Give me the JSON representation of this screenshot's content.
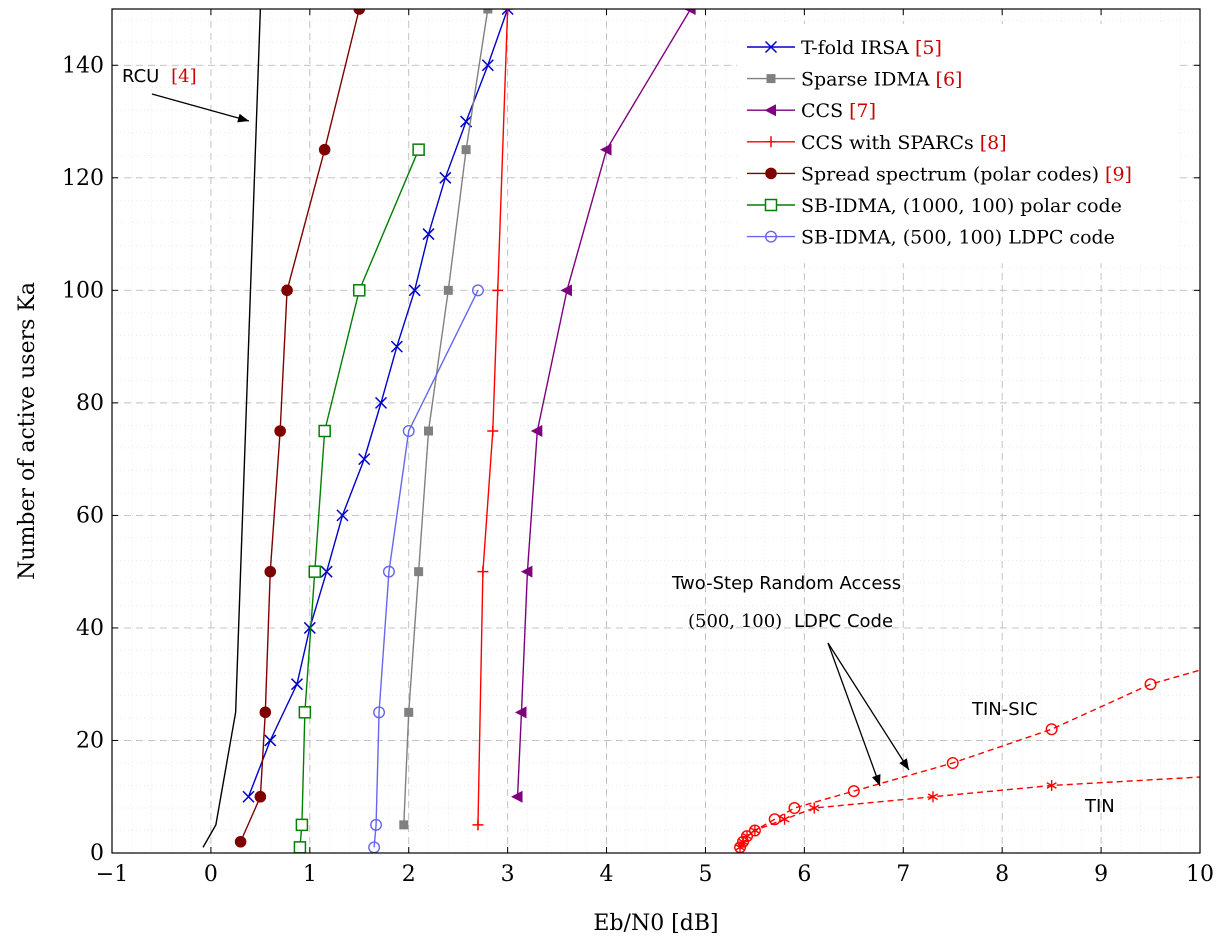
{
  "chart_data": {
    "type": "line",
    "xlabel": "Eb/N0 [dB]",
    "ylabel": "Number of active users Ka",
    "xlim": [
      -1,
      10
    ],
    "ylim": [
      0,
      150
    ],
    "xticks": [
      -1,
      0,
      1,
      2,
      3,
      4,
      5,
      6,
      7,
      8,
      9,
      10
    ],
    "yticks": [
      0,
      20,
      40,
      60,
      80,
      100,
      120,
      140
    ],
    "grid": true,
    "legend_position": "top-right",
    "series": [
      {
        "name": "T-fold IRSA [5]",
        "color": "#0000cc",
        "marker": "x",
        "dash": "",
        "x": [
          0.38,
          0.6,
          0.87,
          1.0,
          1.17,
          1.33,
          1.55,
          1.72,
          1.88,
          2.06,
          2.2,
          2.37,
          2.58,
          2.8,
          3.0
        ],
        "y": [
          10,
          20,
          30,
          40,
          50,
          60,
          70,
          80,
          90,
          100,
          110,
          120,
          130,
          140,
          150
        ]
      },
      {
        "name": "Sparse IDMA [6]",
        "color": "#808080",
        "marker": "square-filled",
        "dash": "",
        "x": [
          1.95,
          2.0,
          2.1,
          2.2,
          2.4,
          2.58,
          2.8
        ],
        "y": [
          5,
          25,
          50,
          75,
          100,
          125,
          150
        ]
      },
      {
        "name": "CCS [7]",
        "color": "#7f007f",
        "marker": "triangle-left",
        "dash": "",
        "x": [
          3.1,
          3.14,
          3.2,
          3.3,
          3.6,
          4.0,
          4.85
        ],
        "y": [
          10,
          25,
          50,
          75,
          100,
          125,
          150
        ]
      },
      {
        "name": "CCS with SPARCs [8]",
        "color": "#ff0000",
        "marker": "plus",
        "dash": "",
        "x": [
          2.7,
          2.75,
          2.85,
          2.9,
          3.0
        ],
        "y": [
          5,
          50,
          75,
          100,
          150
        ]
      },
      {
        "name": "Spread spectrum (polar codes) [9]",
        "color": "#7f0000",
        "marker": "circle-filled",
        "dash": "",
        "x": [
          0.3,
          0.5,
          0.55,
          0.6,
          0.7,
          0.77,
          1.15,
          1.5
        ],
        "y": [
          2,
          10,
          25,
          50,
          75,
          100,
          125,
          150
        ]
      },
      {
        "name": "SB-IDMA, (1000, 100) polar code",
        "color": "#008000",
        "marker": "square-open",
        "dash": "",
        "x": [
          0.9,
          0.92,
          0.95,
          1.05,
          1.15,
          1.5,
          2.1
        ],
        "y": [
          1,
          5,
          25,
          50,
          75,
          100,
          125
        ]
      },
      {
        "name": "SB-IDMA, (500, 100) LDPC code",
        "color": "#6666ee",
        "marker": "circle-open",
        "dash": "",
        "x": [
          1.65,
          1.67,
          1.7,
          1.8,
          2.0,
          2.7
        ],
        "y": [
          1,
          5,
          25,
          50,
          75,
          100
        ]
      },
      {
        "name": "",
        "color": "#000000",
        "marker": "none",
        "dash": "",
        "x": [
          -0.08,
          0.05,
          0.1,
          0.25,
          0.3,
          0.5
        ],
        "y": [
          1,
          5,
          10,
          25,
          50,
          150
        ]
      },
      {
        "name": "",
        "color": "#ff0000",
        "marker": "circle-open",
        "dash": "6,4",
        "x": [
          5.35,
          5.38,
          5.42,
          5.5,
          5.7,
          5.9,
          6.5,
          7.5,
          8.5,
          9.5,
          10.0
        ],
        "y": [
          1,
          2,
          3,
          4,
          6,
          8,
          11,
          16,
          22,
          30,
          32.5
        ]
      },
      {
        "name": "",
        "color": "#ff0000",
        "marker": "star",
        "dash": "6,4",
        "x": [
          5.35,
          5.38,
          5.42,
          5.5,
          5.8,
          6.1,
          7.3,
          8.5,
          10.0
        ],
        "y": [
          1,
          2,
          3,
          4,
          6,
          8,
          10,
          12,
          13.5
        ]
      }
    ],
    "annotations": {
      "rcu_label": "RCU",
      "rcu_ref": "[4]",
      "two_step_line1": "Two-Step Random Access",
      "two_step_line2_code": "(500, 100)",
      "two_step_line2_text": "LDPC Code",
      "tin_sic": "TIN-SIC",
      "tin": "TIN"
    }
  }
}
